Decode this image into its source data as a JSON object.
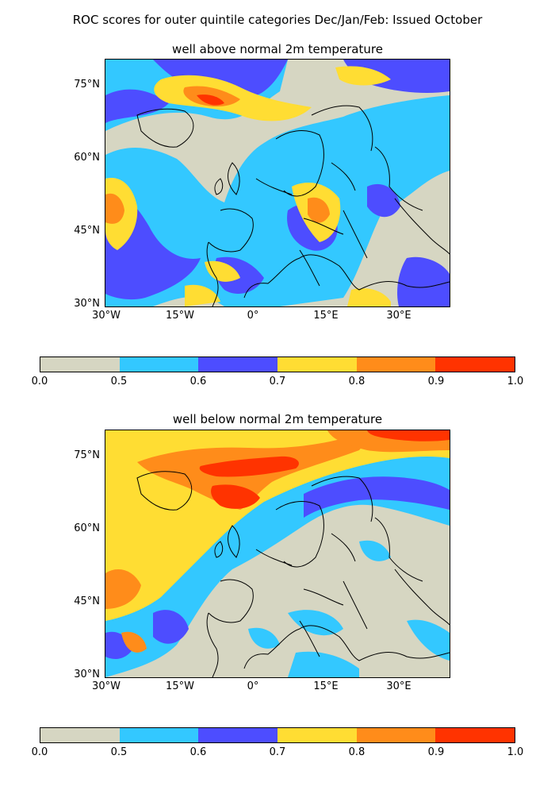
{
  "figure": {
    "title": "ROC scores for outer quintile categories Dec/Jan/Feb: Issued October"
  },
  "panels": [
    {
      "title": "well above normal 2m temperature",
      "lat_labels": [
        "75°N",
        "60°N",
        "45°N",
        "30°N"
      ],
      "lon_labels": [
        "30°W",
        "15°W",
        "0°",
        "15°E",
        "30°E"
      ]
    },
    {
      "title": "well below normal 2m temperature",
      "lat_labels": [
        "75°N",
        "60°N",
        "45°N",
        "30°N"
      ],
      "lon_labels": [
        "30°W",
        "15°W",
        "0°",
        "15°E",
        "30°E"
      ]
    }
  ],
  "colorbar": {
    "levels": [
      "0.0",
      "0.5",
      "0.6",
      "0.7",
      "0.8",
      "0.9",
      "1.0"
    ],
    "colors": [
      "#d6d6c2",
      "#33c8ff",
      "#4d4dff",
      "#ffdd33",
      "#ff8c1a",
      "#ff3300"
    ]
  },
  "chart_data": [
    {
      "type": "heatmap",
      "title": "well above normal 2m temperature",
      "x_ticks": [
        "30°W",
        "15°W",
        "0°",
        "15°E",
        "30°E"
      ],
      "y_ticks": [
        "75°N",
        "60°N",
        "45°N",
        "30°N"
      ],
      "xlim": [
        -30,
        41
      ],
      "ylim": [
        30,
        81
      ],
      "color_levels": [
        0.0,
        0.5,
        0.6,
        0.7,
        0.8,
        0.9,
        1.0
      ]
    },
    {
      "type": "heatmap",
      "title": "well below normal 2m temperature",
      "x_ticks": [
        "30°W",
        "15°W",
        "0°",
        "15°E",
        "30°E"
      ],
      "y_ticks": [
        "75°N",
        "60°N",
        "45°N",
        "30°N"
      ],
      "xlim": [
        -30,
        41
      ],
      "ylim": [
        30,
        81
      ],
      "color_levels": [
        0.0,
        0.5,
        0.6,
        0.7,
        0.8,
        0.9,
        1.0
      ]
    }
  ]
}
